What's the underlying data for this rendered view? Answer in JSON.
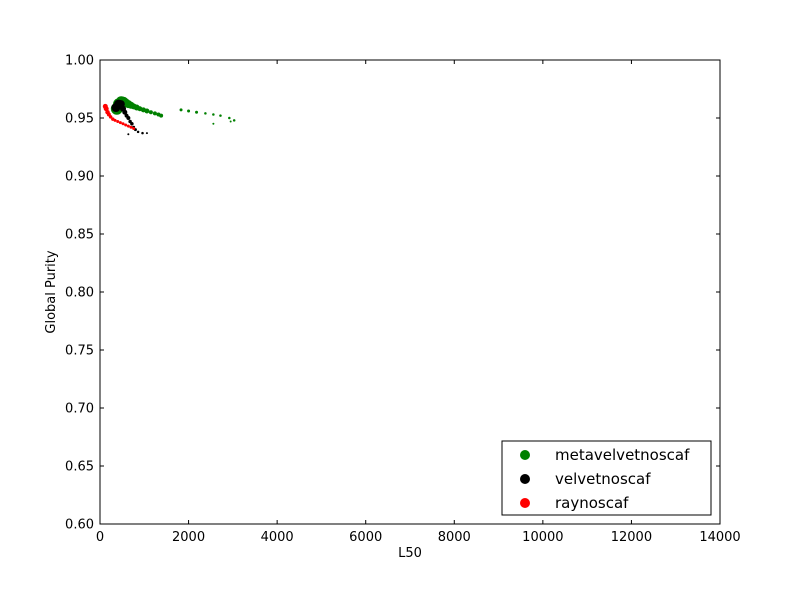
{
  "chart_data": {
    "type": "scatter",
    "title": "",
    "xlabel": "L50",
    "ylabel": "Global Purity",
    "xlim": [
      0,
      14000
    ],
    "ylim": [
      0.6,
      1.0
    ],
    "xticks": [
      0,
      2000,
      4000,
      6000,
      8000,
      10000,
      12000,
      14000
    ],
    "xtick_labels": [
      "0",
      "2000",
      "4000",
      "6000",
      "8000",
      "10000",
      "12000",
      "14000"
    ],
    "yticks": [
      0.6,
      0.65,
      0.7,
      0.75,
      0.8,
      0.85,
      0.9,
      0.95,
      1.0
    ],
    "ytick_labels": [
      "0.60",
      "0.65",
      "0.70",
      "0.75",
      "0.80",
      "0.85",
      "0.90",
      "0.95",
      "1.00"
    ],
    "grid": false,
    "legend_position": "bottom-right",
    "series": [
      {
        "name": "metavelvetnoscaf",
        "color": "#008000",
        "points": [
          [
            380,
            0.958,
            12
          ],
          [
            430,
            0.962,
            12
          ],
          [
            480,
            0.964,
            11
          ],
          [
            530,
            0.964,
            10
          ],
          [
            580,
            0.963,
            9
          ],
          [
            640,
            0.962,
            8
          ],
          [
            700,
            0.961,
            7
          ],
          [
            760,
            0.96,
            6
          ],
          [
            830,
            0.959,
            6
          ],
          [
            900,
            0.958,
            5
          ],
          [
            980,
            0.957,
            5
          ],
          [
            1060,
            0.956,
            5
          ],
          [
            1150,
            0.955,
            4
          ],
          [
            1240,
            0.954,
            4
          ],
          [
            1320,
            0.953,
            4
          ],
          [
            1380,
            0.952,
            4
          ],
          [
            1830,
            0.957,
            3
          ],
          [
            2000,
            0.956,
            3
          ],
          [
            2180,
            0.955,
            3
          ],
          [
            2380,
            0.954,
            2.5
          ],
          [
            2560,
            0.953,
            2.5
          ],
          [
            2720,
            0.952,
            2.5
          ],
          [
            2920,
            0.95,
            2.5
          ],
          [
            3030,
            0.948,
            2.5
          ],
          [
            2950,
            0.947,
            2
          ],
          [
            2560,
            0.945,
            2
          ]
        ]
      },
      {
        "name": "velvetnoscaf",
        "color": "#000000",
        "points": [
          [
            360,
            0.959,
            9
          ],
          [
            420,
            0.962,
            9
          ],
          [
            470,
            0.962,
            8
          ],
          [
            520,
            0.958,
            6
          ],
          [
            560,
            0.955,
            5
          ],
          [
            600,
            0.952,
            4
          ],
          [
            640,
            0.95,
            4
          ],
          [
            680,
            0.947,
            3.5
          ],
          [
            720,
            0.945,
            3.5
          ],
          [
            760,
            0.942,
            3
          ],
          [
            800,
            0.94,
            3
          ],
          [
            860,
            0.938,
            2.5
          ],
          [
            960,
            0.937,
            2.5
          ],
          [
            1060,
            0.937,
            2
          ],
          [
            640,
            0.936,
            2
          ]
        ]
      },
      {
        "name": "raynoscaf",
        "color": "#ff0000",
        "points": [
          [
            120,
            0.96,
            5
          ],
          [
            140,
            0.958,
            5
          ],
          [
            170,
            0.955,
            4.5
          ],
          [
            200,
            0.953,
            4
          ],
          [
            240,
            0.951,
            3.5
          ],
          [
            290,
            0.949,
            3.5
          ],
          [
            340,
            0.948,
            3
          ],
          [
            400,
            0.947,
            3
          ],
          [
            460,
            0.946,
            3
          ],
          [
            520,
            0.945,
            3
          ],
          [
            580,
            0.944,
            3
          ],
          [
            640,
            0.943,
            3
          ],
          [
            700,
            0.942,
            3
          ],
          [
            760,
            0.941,
            3
          ]
        ]
      }
    ]
  }
}
